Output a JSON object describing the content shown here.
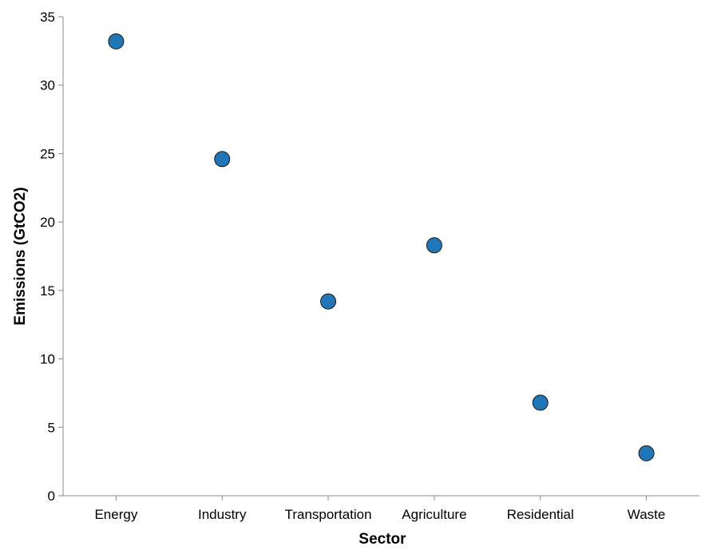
{
  "chart_data": {
    "type": "scatter",
    "categories": [
      "Energy",
      "Industry",
      "Transportation",
      "Agriculture",
      "Residential",
      "Waste"
    ],
    "values": [
      33.2,
      24.6,
      14.2,
      18.3,
      6.8,
      3.1
    ],
    "xlabel": "Sector",
    "ylabel": "Emissions (GtCO2)",
    "ylim": [
      0,
      35
    ],
    "yticks": [
      0,
      5,
      10,
      15,
      20,
      25,
      30,
      35
    ],
    "grid": false,
    "point_color": "#2176b8",
    "point_stroke": "#1a1a1a"
  }
}
